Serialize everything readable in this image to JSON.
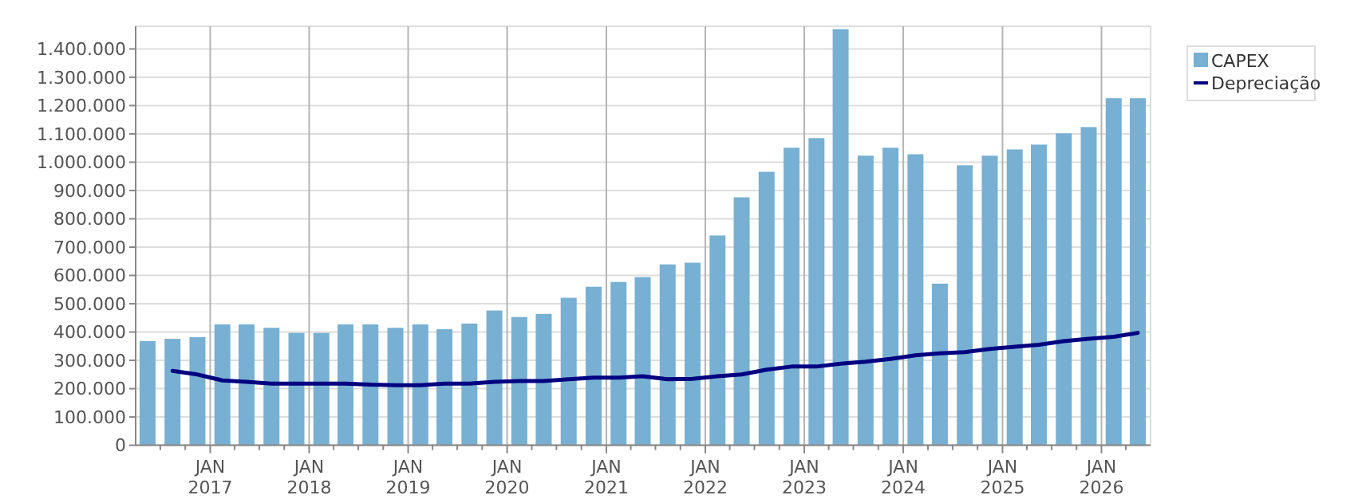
{
  "chart_data": {
    "type": "bar",
    "x": [
      "2016-05-15",
      "2016-08-15",
      "2016-11-15",
      "2017-02-15",
      "2017-05-15",
      "2017-08-15",
      "2017-11-15",
      "2018-02-15",
      "2018-05-15",
      "2018-08-15",
      "2018-11-15",
      "2019-02-15",
      "2019-05-15",
      "2019-08-15",
      "2019-11-15",
      "2020-02-15",
      "2020-05-15",
      "2020-08-15",
      "2020-11-15",
      "2021-02-15",
      "2021-05-15",
      "2021-08-15",
      "2021-11-15",
      "2022-02-15",
      "2022-05-15",
      "2022-08-15",
      "2022-11-15",
      "2023-02-15",
      "2023-05-15",
      "2023-08-15",
      "2023-11-15",
      "2024-02-15",
      "2024-05-15",
      "2024-08-15",
      "2024-11-15",
      "2025-02-15",
      "2025-05-15",
      "2025-08-15",
      "2025-11-15",
      "2026-02-15",
      "2026-05-15"
    ],
    "series": [
      {
        "name": "CAPEX",
        "color": "#77b0d2",
        "values": [
          368000,
          376000,
          382000,
          427000,
          427000,
          415000,
          397000,
          397000,
          427000,
          427000,
          415000,
          427000,
          410000,
          430000,
          476000,
          453000,
          464000,
          521000,
          560000,
          577000,
          594000,
          639000,
          645000,
          741000,
          876000,
          966000,
          1051000,
          1085000,
          1470000,
          1023000,
          1051000,
          1028000,
          571000,
          989000,
          1023000,
          1045000,
          1062000,
          1102000,
          1124000,
          1226000,
          1226000
        ]
      },
      {
        "name": "Depreciação",
        "type": "line",
        "color": "#000080",
        "values": [
          null,
          263000,
          250000,
          229000,
          224000,
          218000,
          218000,
          218000,
          218000,
          214000,
          212000,
          212000,
          218000,
          218000,
          224000,
          227000,
          227000,
          233000,
          239000,
          239000,
          244000,
          233000,
          235000,
          244000,
          250000,
          267000,
          278000,
          278000,
          288000,
          295000,
          305000,
          318000,
          325000,
          329000,
          340000,
          348000,
          355000,
          368000,
          376000,
          383000,
          397000
        ]
      }
    ],
    "xlim": [
      "2016-04-01",
      "2026-07-01"
    ],
    "xticks": [
      {
        "value": "2016-07-01",
        "label": null
      },
      {
        "value": "2016-10-01",
        "label": null
      },
      {
        "value": "2017-01-01",
        "label": "JAN 2017"
      },
      {
        "value": "2017-04-01",
        "label": null
      },
      {
        "value": "2017-07-01",
        "label": null
      },
      {
        "value": "2017-10-01",
        "label": null
      },
      {
        "value": "2018-01-01",
        "label": "JAN 2018"
      },
      {
        "value": "2018-04-01",
        "label": null
      },
      {
        "value": "2018-07-01",
        "label": null
      },
      {
        "value": "2018-10-01",
        "label": null
      },
      {
        "value": "2019-01-01",
        "label": "JAN 2019"
      },
      {
        "value": "2019-04-01",
        "label": null
      },
      {
        "value": "2019-07-01",
        "label": null
      },
      {
        "value": "2019-10-01",
        "label": null
      },
      {
        "value": "2020-01-01",
        "label": "JAN 2020"
      },
      {
        "value": "2020-04-01",
        "label": null
      },
      {
        "value": "2020-07-01",
        "label": null
      },
      {
        "value": "2020-10-01",
        "label": null
      },
      {
        "value": "2021-01-01",
        "label": "JAN 2021"
      },
      {
        "value": "2021-04-01",
        "label": null
      },
      {
        "value": "2021-07-01",
        "label": null
      },
      {
        "value": "2021-10-01",
        "label": null
      },
      {
        "value": "2022-01-01",
        "label": "JAN 2022"
      },
      {
        "value": "2022-04-01",
        "label": null
      },
      {
        "value": "2022-07-01",
        "label": null
      },
      {
        "value": "2022-10-01",
        "label": null
      },
      {
        "value": "2023-01-01",
        "label": "JAN 2023"
      },
      {
        "value": "2023-04-01",
        "label": null
      },
      {
        "value": "2023-07-01",
        "label": null
      },
      {
        "value": "2023-10-01",
        "label": null
      },
      {
        "value": "2024-01-01",
        "label": "JAN 2024"
      },
      {
        "value": "2024-04-01",
        "label": null
      },
      {
        "value": "2024-07-01",
        "label": null
      },
      {
        "value": "2024-10-01",
        "label": null
      },
      {
        "value": "2025-01-01",
        "label": "JAN 2025"
      },
      {
        "value": "2025-04-01",
        "label": null
      },
      {
        "value": "2025-07-01",
        "label": null
      },
      {
        "value": "2025-10-01",
        "label": null
      },
      {
        "value": "2026-01-01",
        "label": "JAN 2026"
      },
      {
        "value": "2026-04-01",
        "label": null
      }
    ],
    "ylim": [
      0,
      1480000
    ],
    "yticks": [
      0,
      {
        "value": 100000,
        "label": "100.000"
      },
      {
        "value": 200000,
        "label": "200.000"
      },
      {
        "value": 300000,
        "label": "300.000"
      },
      {
        "value": 400000,
        "label": "400.000"
      },
      {
        "value": 500000,
        "label": "500.000"
      },
      {
        "value": 600000,
        "label": "600.000"
      },
      {
        "value": 700000,
        "label": "700.000"
      },
      {
        "value": 800000,
        "label": "800.000"
      },
      {
        "value": 900000,
        "label": "900.000"
      },
      {
        "value": 1000000,
        "label": "1.000.000"
      },
      {
        "value": 1100000,
        "label": "1.100.000"
      },
      {
        "value": 1200000,
        "label": "1.200.000"
      },
      {
        "value": 1300000,
        "label": "1.300.000"
      },
      {
        "value": 1400000,
        "label": "1.400.000"
      }
    ],
    "grid": true,
    "legend": "right",
    "line_style": "solid",
    "marker": "none"
  }
}
